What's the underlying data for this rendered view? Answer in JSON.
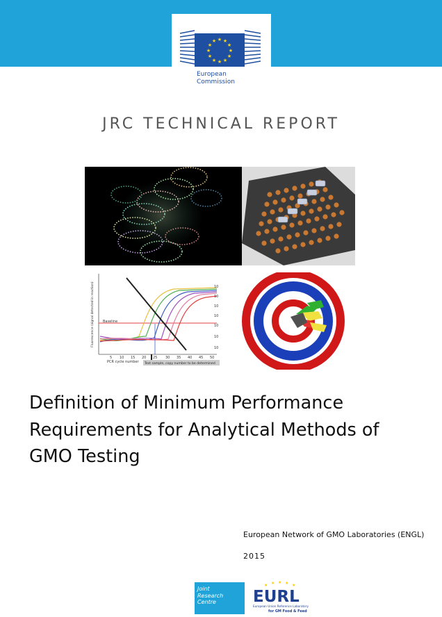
{
  "header": {
    "logo_line1": "European",
    "logo_line2": "Commission",
    "band_color": "#1fa3d9"
  },
  "report_label": "JRC TECHNICAL REPORT",
  "images": [
    {
      "name": "dna-helix-image"
    },
    {
      "name": "pcr-plate-image"
    },
    {
      "name": "amplification-plot-image"
    },
    {
      "name": "target-image"
    }
  ],
  "amplification_plot": {
    "y_axis_label": "Fluorescence (signal detected in reaction)",
    "x_axis_label": "PCR cycle number",
    "x_ticks": [
      "5",
      "10",
      "15",
      "20",
      "25",
      "30",
      "35",
      "40",
      "45",
      "50"
    ],
    "y_ticks": [
      "10",
      "10",
      "10",
      "10",
      "10",
      "10",
      "10"
    ],
    "baseline_label": "Baseline",
    "callout": "Test sample, copy number to be determined"
  },
  "title_lines": [
    "Definition of Minimum Performance",
    "Requirements for Analytical Methods of",
    "GMO Testing"
  ],
  "organisation": "European Network of GMO Laboratories (ENGL)",
  "year": "2015",
  "footer": {
    "jrc_line1": "Joint",
    "jrc_line2": "Research",
    "jrc_line3": "Centre",
    "eurl_logo_text": "EURL",
    "eurl_subtext1": "European Union Reference Laboratory",
    "eurl_subtext2": "for GM Food & Feed"
  }
}
